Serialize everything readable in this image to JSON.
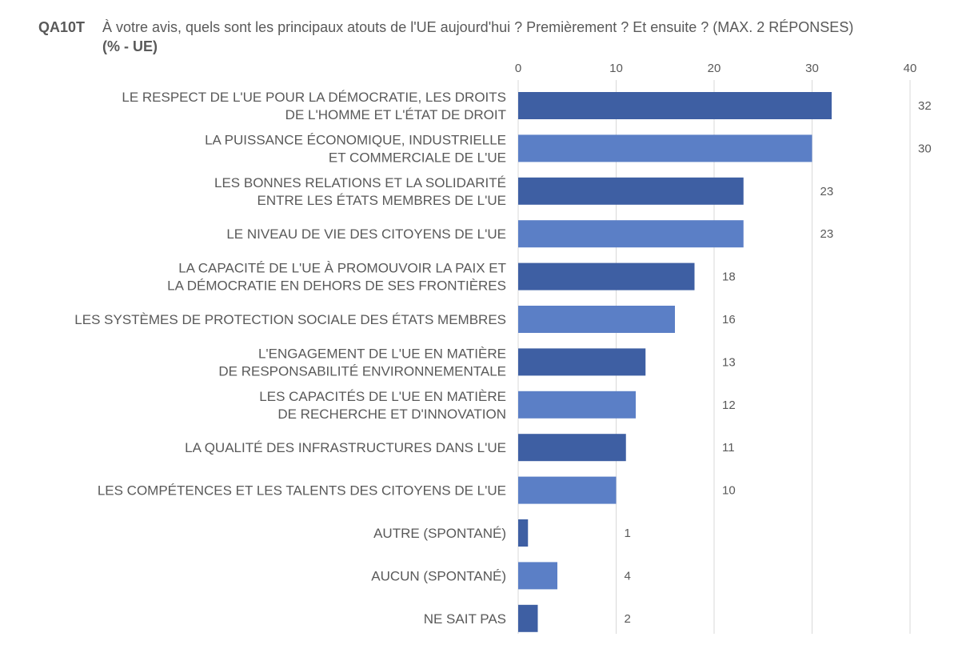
{
  "header": {
    "code": "QA10T",
    "question": "À votre avis, quels sont les principaux atouts de l'UE aujourd'hui ? Premièrement ? Et ensuite ? (MAX. 2 RÉPONSES)",
    "subtitle": "(% - UE)"
  },
  "chart_data": {
    "type": "bar",
    "orientation": "horizontal",
    "xlim": [
      0,
      40
    ],
    "xticks": [
      0,
      10,
      20,
      30,
      40
    ],
    "grid": true,
    "categories": [
      [
        "LE RESPECT DE L'UE POUR LA DÉMOCRATIE, LES DROITS",
        "DE L'HOMME ET L'ÉTAT DE DROIT"
      ],
      [
        "LA PUISSANCE ÉCONOMIQUE, INDUSTRIELLE",
        "ET COMMERCIALE DE L'UE"
      ],
      [
        "LES BONNES RELATIONS ET LA SOLIDARITÉ",
        "ENTRE LES ÉTATS MEMBRES DE L'UE"
      ],
      [
        "LE NIVEAU DE VIE DES CITOYENS DE L'UE"
      ],
      [
        "LA CAPACITÉ DE L'UE À PROMOUVOIR LA PAIX ET",
        "LA DÉMOCRATIE EN DEHORS DE SES FRONTIÈRES"
      ],
      [
        "LES SYSTÈMES DE PROTECTION SOCIALE DES ÉTATS MEMBRES"
      ],
      [
        "L'ENGAGEMENT DE L'UE EN MATIÈRE",
        "DE RESPONSABILITÉ ENVIRONNEMENTALE"
      ],
      [
        "LES CAPACITÉS DE L'UE EN MATIÈRE",
        "DE RECHERCHE ET D'INNOVATION"
      ],
      [
        "LA QUALITÉ DES INFRASTRUCTURES DANS L'UE"
      ],
      [
        "LES COMPÉTENCES ET LES TALENTS DES CITOYENS DE L'UE"
      ],
      [
        "AUTRE (SPONTANÉ)"
      ],
      [
        "AUCUN (SPONTANÉ)"
      ],
      [
        "NE SAIT PAS"
      ]
    ],
    "values": [
      32,
      30,
      23,
      23,
      18,
      16,
      13,
      12,
      11,
      10,
      1,
      4,
      2
    ],
    "colors": {
      "dark": "#3e5fa3",
      "light": "#5b7fc6",
      "grid": "#d9d9d9"
    }
  }
}
